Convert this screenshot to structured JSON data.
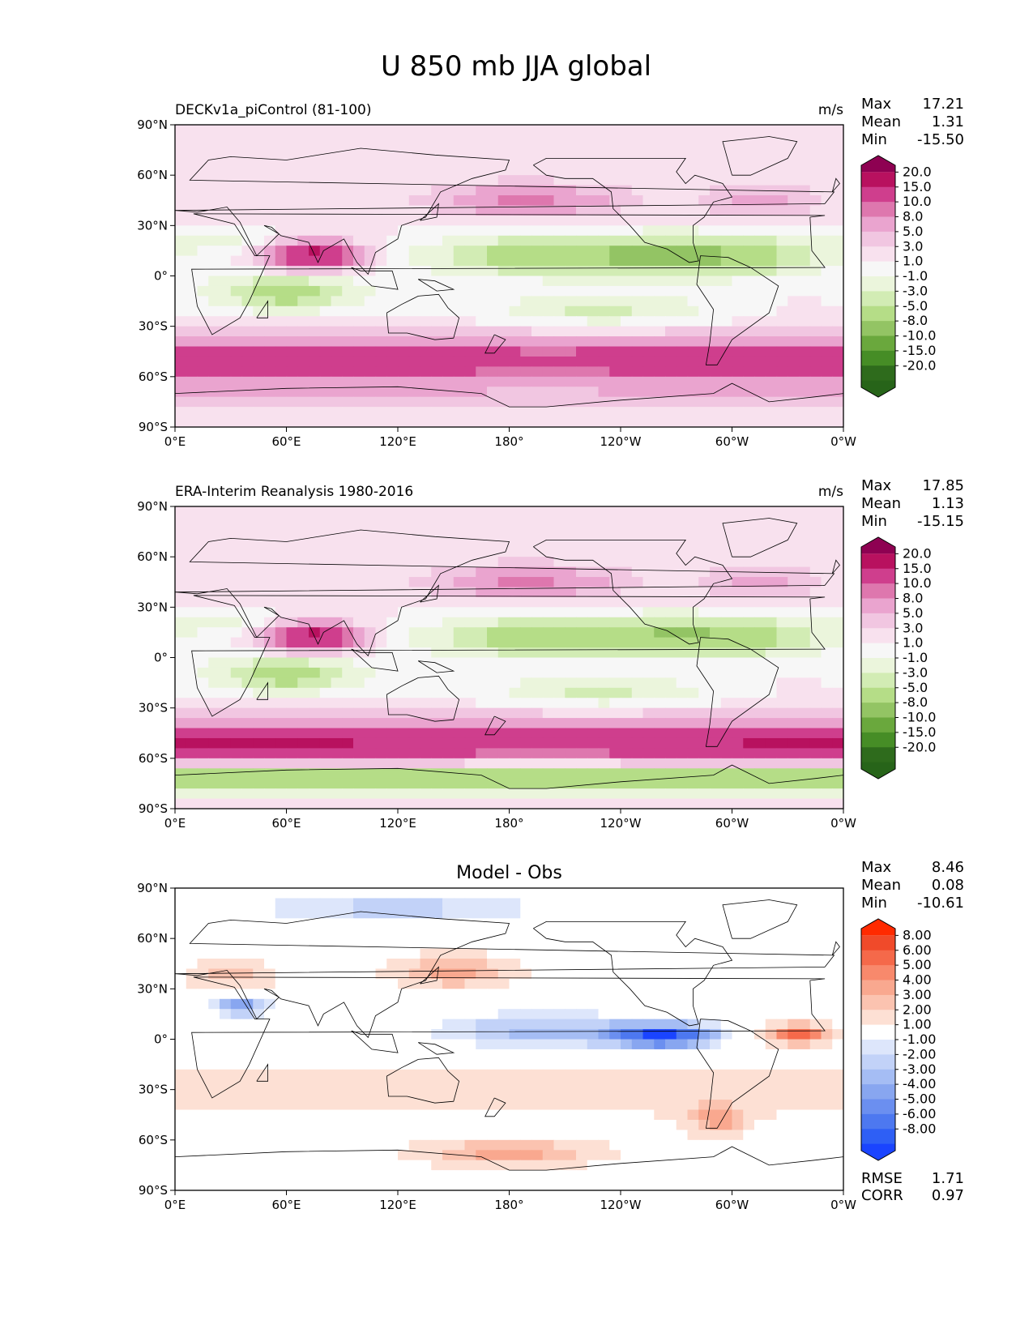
{
  "title": "U 850 mb JJA global",
  "chart_data": [
    {
      "type": "heatmap",
      "title": "DECKv1a_piControl (81-100)",
      "units": "m/s",
      "stats": {
        "Max": "17.21",
        "Mean": "1.31",
        "Min": "-15.50"
      },
      "xticks": [
        "0°E",
        "60°E",
        "120°E",
        "180°",
        "120°W",
        "60°W",
        "0°W"
      ],
      "yticks": [
        "90°N",
        "60°N",
        "30°N",
        "0°",
        "30°S",
        "60°S",
        "90°S"
      ],
      "xlim": [
        0,
        360
      ],
      "ylim": [
        -90,
        90
      ],
      "colorbar": {
        "levels": [
          "20.0",
          "15.0",
          "10.0",
          "8.0",
          "5.0",
          "3.0",
          "1.0",
          "-1.0",
          "-3.0",
          "-5.0",
          "-8.0",
          "-10.0",
          "-15.0",
          "-20.0"
        ],
        "colors": [
          "#8e0152",
          "#b8115f",
          "#cf3e8d",
          "#de77ae",
          "#eaa4cf",
          "#f1c6e1",
          "#f8e1ee",
          "#f7f7f7",
          "#ebf5dc",
          "#d2ecb4",
          "#b5dd87",
          "#93c464",
          "#6aa83d",
          "#468d26",
          "#2e6b1c",
          "#276419"
        ]
      }
    },
    {
      "type": "heatmap",
      "title": "ERA-Interim Reanalysis 1980-2016",
      "units": "m/s",
      "stats": {
        "Max": "17.85",
        "Mean": "1.13",
        "Min": "-15.15"
      },
      "xticks": [
        "0°E",
        "60°E",
        "120°E",
        "180°",
        "120°W",
        "60°W",
        "0°W"
      ],
      "yticks": [
        "90°N",
        "60°N",
        "30°N",
        "0°",
        "30°S",
        "60°S",
        "90°S"
      ],
      "xlim": [
        0,
        360
      ],
      "ylim": [
        -90,
        90
      ],
      "colorbar": {
        "levels": [
          "20.0",
          "15.0",
          "10.0",
          "8.0",
          "5.0",
          "3.0",
          "1.0",
          "-1.0",
          "-3.0",
          "-5.0",
          "-8.0",
          "-10.0",
          "-15.0",
          "-20.0"
        ],
        "colors": [
          "#8e0152",
          "#b8115f",
          "#cf3e8d",
          "#de77ae",
          "#eaa4cf",
          "#f1c6e1",
          "#f8e1ee",
          "#f7f7f7",
          "#ebf5dc",
          "#d2ecb4",
          "#b5dd87",
          "#93c464",
          "#6aa83d",
          "#468d26",
          "#2e6b1c",
          "#276419"
        ]
      }
    },
    {
      "type": "heatmap",
      "title": "Model - Obs",
      "stats": {
        "Max": "8.46",
        "Mean": "0.08",
        "Min": "-10.61"
      },
      "metrics": {
        "RMSE": "1.71",
        "CORR": "0.97"
      },
      "xticks": [
        "0°E",
        "60°E",
        "120°E",
        "180°",
        "120°W",
        "60°W",
        "0°W"
      ],
      "yticks": [
        "90°N",
        "60°N",
        "30°N",
        "0°",
        "30°S",
        "60°S",
        "90°S"
      ],
      "xlim": [
        0,
        360
      ],
      "ylim": [
        -90,
        90
      ],
      "colorbar": {
        "levels": [
          "8.00",
          "6.00",
          "5.00",
          "4.00",
          "3.00",
          "2.00",
          "1.00",
          "-1.00",
          "-2.00",
          "-3.00",
          "-4.00",
          "-5.00",
          "-6.00",
          "-8.00"
        ],
        "colors": [
          "#ff2a00",
          "#f04a2a",
          "#f5694a",
          "#f8896c",
          "#f9a88f",
          "#fbc3b0",
          "#fde0d4",
          "#ffffff",
          "#dde6fb",
          "#c2d2f8",
          "#a5bdf4",
          "#88a6f0",
          "#6b8ff0",
          "#4d78f0",
          "#2e5ff5",
          "#1a44ff"
        ]
      }
    }
  ]
}
